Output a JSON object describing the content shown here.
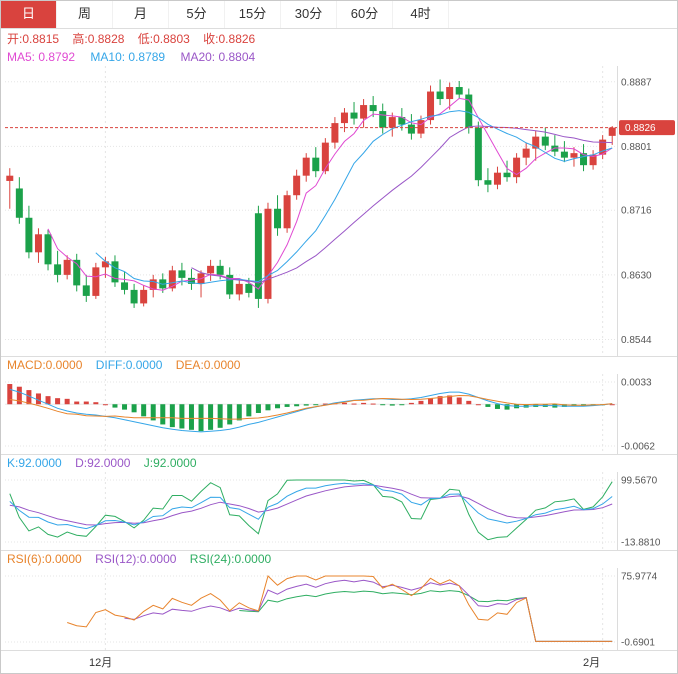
{
  "tabs": {
    "items": [
      {
        "label": "日",
        "active": true
      },
      {
        "label": "周",
        "active": false
      },
      {
        "label": "月",
        "active": false
      },
      {
        "label": "5分",
        "active": false
      },
      {
        "label": "15分",
        "active": false
      },
      {
        "label": "30分",
        "active": false
      },
      {
        "label": "60分",
        "active": false
      },
      {
        "label": "4时",
        "active": false
      }
    ]
  },
  "legend_ohlc": {
    "open": "开:0.8815",
    "high": "高:0.8828",
    "low": "低:0.8803",
    "close": "收:0.8826"
  },
  "legend_ma": {
    "ma5": "MA5: 0.8792",
    "ma10": "MA10: 0.8789",
    "ma20": "MA20: 0.8804"
  },
  "legend_macd": {
    "macd": "MACD:0.0000",
    "diff": "DIFF:0.0000",
    "dea": "DEA:0.0000"
  },
  "legend_kdj": {
    "k": "K:92.0000",
    "d": "D:92.0000",
    "j": "J:92.0000"
  },
  "legend_rsi": {
    "rsi6": "RSI(6):0.0000",
    "rsi12": "RSI(12):0.0000",
    "rsi24": "RSI(24):0.0000"
  },
  "palette": {
    "up": "#d9433e",
    "down": "#1ba14a",
    "ma5": "#e04ad2",
    "ma10": "#35a6e8",
    "ma20": "#9a57c7",
    "macd": "#e8842c",
    "diff": "#35a6e8",
    "dea": "#e8842c",
    "k": "#35a6e8",
    "d": "#9a57c7",
    "j": "#2fae62",
    "rsi6": "#e8842c",
    "rsi12": "#9a57c7",
    "rsi24": "#2fae62",
    "grid": "#e5e5e5",
    "axis_text": "#555",
    "tab_active_bg": "#d9433e"
  },
  "chart_data": {
    "type": "candlestick",
    "x_labels": [
      {
        "text": "12月",
        "index": 10
      },
      {
        "text": "2月",
        "index": 62
      }
    ],
    "panels": [
      {
        "name": "price",
        "type": "candlestick",
        "ylim": [
          0.853,
          0.89
        ],
        "ticks": [
          0.8887,
          0.8801,
          0.8716,
          0.863,
          0.8544
        ],
        "tick_labels": [
          "0.8887",
          "0.8801",
          "0.8716",
          "0.8630",
          "0.8544"
        ],
        "last_price": 0.8826,
        "last_price_label": "0.8826",
        "ma_periods": [
          5,
          10,
          20
        ]
      },
      {
        "name": "macd",
        "type": "bar_line",
        "ylim": [
          -0.0062,
          0.0033
        ],
        "ticks": [
          0.0033,
          -0.0062
        ],
        "tick_labels": [
          "0.0033",
          "-0.0062"
        ],
        "params": [
          12,
          26,
          9
        ]
      },
      {
        "name": "kdj",
        "type": "line",
        "ylim": [
          -13.881,
          99.567
        ],
        "ticks": [
          99.567,
          -13.881
        ],
        "tick_labels": [
          "99.5670",
          "-13.8810"
        ],
        "params": [
          9,
          3,
          3
        ]
      },
      {
        "name": "rsi",
        "type": "line",
        "ylim": [
          -0.6901,
          75.9774
        ],
        "ticks": [
          75.9774,
          -0.6901
        ],
        "tick_labels": [
          "75.9774",
          "-0.6901"
        ],
        "params": [
          6,
          12,
          24
        ],
        "zero_tail": 9
      }
    ],
    "candles": [
      [
        0.8755,
        0.8772,
        0.8718,
        0.8762
      ],
      [
        0.8745,
        0.876,
        0.8698,
        0.8706
      ],
      [
        0.8706,
        0.8722,
        0.8652,
        0.866
      ],
      [
        0.866,
        0.8692,
        0.8646,
        0.8684
      ],
      [
        0.8684,
        0.869,
        0.8636,
        0.8644
      ],
      [
        0.8644,
        0.8662,
        0.862,
        0.863
      ],
      [
        0.863,
        0.8656,
        0.8624,
        0.865
      ],
      [
        0.865,
        0.8658,
        0.8608,
        0.8616
      ],
      [
        0.8616,
        0.863,
        0.8594,
        0.8602
      ],
      [
        0.8602,
        0.8646,
        0.8598,
        0.864
      ],
      [
        0.864,
        0.8654,
        0.8626,
        0.8648
      ],
      [
        0.8648,
        0.8656,
        0.8614,
        0.862
      ],
      [
        0.862,
        0.8634,
        0.8604,
        0.861
      ],
      [
        0.861,
        0.8618,
        0.8586,
        0.8592
      ],
      [
        0.8592,
        0.8616,
        0.8588,
        0.861
      ],
      [
        0.861,
        0.863,
        0.86,
        0.8624
      ],
      [
        0.8624,
        0.8632,
        0.8606,
        0.8612
      ],
      [
        0.8612,
        0.8642,
        0.8608,
        0.8636
      ],
      [
        0.8636,
        0.8646,
        0.8616,
        0.8626
      ],
      [
        0.8626,
        0.8638,
        0.861,
        0.8618
      ],
      [
        0.8618,
        0.8636,
        0.86,
        0.8632
      ],
      [
        0.8632,
        0.865,
        0.8622,
        0.8642
      ],
      [
        0.8642,
        0.865,
        0.8624,
        0.863
      ],
      [
        0.863,
        0.864,
        0.8598,
        0.8604
      ],
      [
        0.8604,
        0.8624,
        0.8596,
        0.8618
      ],
      [
        0.8618,
        0.8626,
        0.86,
        0.8606
      ],
      [
        0.8712,
        0.8722,
        0.8586,
        0.8598
      ],
      [
        0.8598,
        0.8726,
        0.8592,
        0.8718
      ],
      [
        0.8718,
        0.8736,
        0.8682,
        0.8692
      ],
      [
        0.8692,
        0.8742,
        0.8686,
        0.8736
      ],
      [
        0.8736,
        0.877,
        0.873,
        0.8762
      ],
      [
        0.8762,
        0.8792,
        0.8754,
        0.8786
      ],
      [
        0.8786,
        0.88,
        0.876,
        0.8768
      ],
      [
        0.8768,
        0.8812,
        0.8764,
        0.8806
      ],
      [
        0.8806,
        0.884,
        0.8798,
        0.8832
      ],
      [
        0.8832,
        0.8852,
        0.882,
        0.8846
      ],
      [
        0.8846,
        0.886,
        0.883,
        0.8838
      ],
      [
        0.8838,
        0.8864,
        0.8826,
        0.8856
      ],
      [
        0.8856,
        0.8868,
        0.884,
        0.8848
      ],
      [
        0.8848,
        0.8858,
        0.8818,
        0.8826
      ],
      [
        0.8826,
        0.8846,
        0.8814,
        0.884
      ],
      [
        0.884,
        0.8852,
        0.8822,
        0.883
      ],
      [
        0.883,
        0.8844,
        0.881,
        0.8818
      ],
      [
        0.8818,
        0.8842,
        0.8812,
        0.8836
      ],
      [
        0.8836,
        0.8882,
        0.883,
        0.8874
      ],
      [
        0.8874,
        0.889,
        0.8856,
        0.8864
      ],
      [
        0.8864,
        0.8886,
        0.885,
        0.888
      ],
      [
        0.888,
        0.8888,
        0.8864,
        0.887
      ],
      [
        0.887,
        0.8878,
        0.8818,
        0.8826
      ],
      [
        0.8826,
        0.8834,
        0.8748,
        0.8756
      ],
      [
        0.8756,
        0.8772,
        0.874,
        0.875
      ],
      [
        0.875,
        0.8774,
        0.8744,
        0.8766
      ],
      [
        0.8766,
        0.8782,
        0.8754,
        0.876
      ],
      [
        0.876,
        0.8792,
        0.8752,
        0.8786
      ],
      [
        0.8786,
        0.8806,
        0.8776,
        0.8798
      ],
      [
        0.8798,
        0.8822,
        0.8782,
        0.8814
      ],
      [
        0.8814,
        0.8826,
        0.8796,
        0.8802
      ],
      [
        0.8802,
        0.8816,
        0.8788,
        0.8794
      ],
      [
        0.8794,
        0.8808,
        0.878,
        0.8786
      ],
      [
        0.8786,
        0.88,
        0.8774,
        0.8792
      ],
      [
        0.8792,
        0.8804,
        0.8768,
        0.8776
      ],
      [
        0.8776,
        0.8796,
        0.877,
        0.879
      ],
      [
        0.879,
        0.8816,
        0.8784,
        0.881
      ],
      [
        0.8815,
        0.8828,
        0.8803,
        0.8826
      ]
    ],
    "macd": {
      "diff": [
        0.0022,
        0.0018,
        0.0012,
        0.0006,
        0.0,
        -0.0006,
        -0.001,
        -0.0013,
        -0.0015,
        -0.0016,
        -0.0018,
        -0.002,
        -0.0023,
        -0.0026,
        -0.0029,
        -0.0032,
        -0.0035,
        -0.0037,
        -0.0039,
        -0.004,
        -0.0041,
        -0.004,
        -0.0039,
        -0.0037,
        -0.0034,
        -0.003,
        -0.0027,
        -0.0023,
        -0.0019,
        -0.0015,
        -0.0011,
        -0.0007,
        -0.0004,
        -0.0001,
        0.0002,
        0.0004,
        0.0006,
        0.0007,
        0.0008,
        0.0008,
        0.0007,
        0.0007,
        0.0008,
        0.001,
        0.0013,
        0.0016,
        0.0018,
        0.0018,
        0.0015,
        0.001,
        0.0005,
        0.0001,
        -0.0002,
        -0.0003,
        -0.0003,
        -0.0002,
        -0.0002,
        -0.0002,
        -0.0003,
        -0.0003,
        -0.0003,
        -0.0002,
        -0.0001,
        0.0001
      ],
      "hist": [
        0.003,
        0.0026,
        0.0021,
        0.0016,
        0.0012,
        0.0009,
        0.0008,
        0.0004,
        0.0004,
        0.0003,
        0.0,
        -0.0005,
        -0.0008,
        -0.0012,
        -0.0018,
        -0.0024,
        -0.003,
        -0.0034,
        -0.0036,
        -0.0038,
        -0.004,
        -0.0038,
        -0.0035,
        -0.003,
        -0.0024,
        -0.0018,
        -0.0013,
        -0.0009,
        -0.0006,
        -0.0004,
        -0.0003,
        -0.0002,
        -0.0001,
        0.0001,
        0.0002,
        0.0002,
        0.0001,
        0.0002,
        0.0001,
        -0.0001,
        -0.0002,
        -0.0001,
        0.0002,
        0.0005,
        0.0009,
        0.0012,
        0.0013,
        0.001,
        0.0005,
        0.0,
        -0.0004,
        -0.0007,
        -0.0008,
        -0.0006,
        -0.0005,
        -0.0004,
        -0.0004,
        -0.0005,
        -0.0004,
        -0.0003,
        -0.0003,
        -0.0002,
        -0.0001,
        0.0
      ]
    }
  }
}
